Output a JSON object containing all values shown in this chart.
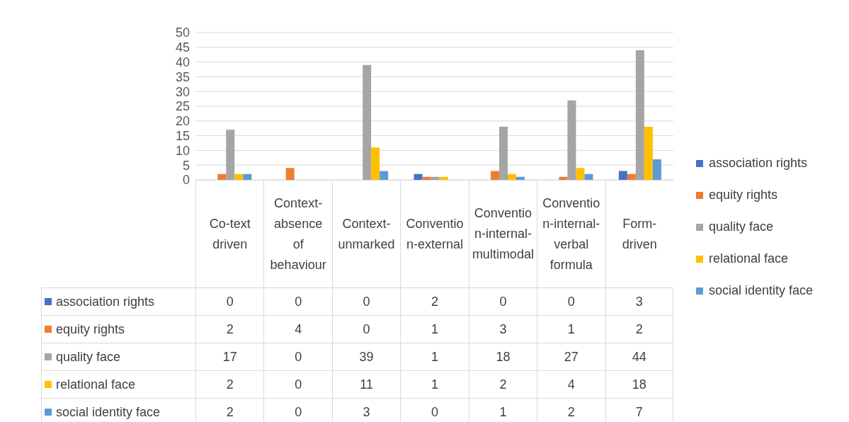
{
  "chart_data": {
    "type": "bar",
    "categories": [
      "Co-text driven",
      "Context-absence of behaviour",
      "Context-unmarked",
      "Convention-external",
      "Convention-internal-multimodal",
      "Convention-internal-verbal formula",
      "Form-driven"
    ],
    "series": [
      {
        "name": "association rights",
        "color": "#4472c4",
        "values": [
          0,
          0,
          0,
          2,
          0,
          0,
          3
        ]
      },
      {
        "name": "equity rights",
        "color": "#ed7d31",
        "values": [
          2,
          4,
          0,
          1,
          3,
          1,
          2
        ]
      },
      {
        "name": "quality face",
        "color": "#a5a5a5",
        "values": [
          17,
          0,
          39,
          1,
          18,
          27,
          44
        ]
      },
      {
        "name": "relational face",
        "color": "#ffc000",
        "values": [
          2,
          0,
          11,
          1,
          2,
          4,
          18
        ]
      },
      {
        "name": "social identity face",
        "color": "#5b9bd5",
        "values": [
          2,
          0,
          3,
          0,
          1,
          2,
          7
        ]
      }
    ],
    "ylim": [
      0,
      50
    ],
    "yticks": [
      0,
      5,
      10,
      15,
      20,
      25,
      30,
      35,
      40,
      45,
      50
    ],
    "grid": "y",
    "legend": "right",
    "data_labels": true
  }
}
